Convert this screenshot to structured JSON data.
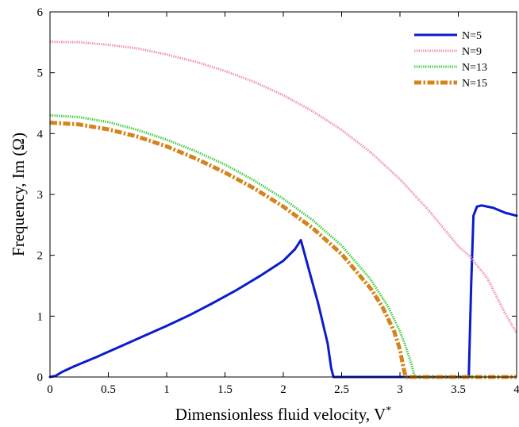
{
  "chart_data": {
    "type": "line",
    "title": "",
    "xlabel": "Dimensionless fluid velocity, V",
    "xlabel_superscript": "*",
    "ylabel": "Frequency, Im (Ω)",
    "xlim": [
      0,
      4
    ],
    "ylim": [
      0,
      6
    ],
    "xticks": [
      0,
      0.5,
      1,
      1.5,
      2,
      2.5,
      3,
      3.5,
      4
    ],
    "xtick_labels": [
      "0",
      "0.5",
      "1",
      "1.5",
      "2",
      "2.5",
      "3",
      "3.5",
      "4"
    ],
    "yticks": [
      0,
      1,
      2,
      3,
      4,
      5,
      6
    ],
    "ytick_labels": [
      "0",
      "1",
      "2",
      "3",
      "4",
      "5",
      "6"
    ],
    "grid": false,
    "legend_position": "top-right",
    "series": [
      {
        "name": "N=5",
        "color": "#0a1ccc",
        "style": "solid",
        "x": [
          0,
          0.05,
          0.1,
          0.2,
          0.4,
          0.6,
          0.8,
          1.0,
          1.2,
          1.4,
          1.6,
          1.8,
          2.0,
          2.1,
          2.15,
          2.2,
          2.3,
          2.38,
          2.41,
          2.43,
          3.0,
          3.59,
          3.61,
          3.63,
          3.66,
          3.7,
          3.8,
          3.9,
          4.0
        ],
        "y": [
          0,
          0.02,
          0.08,
          0.17,
          0.33,
          0.5,
          0.67,
          0.84,
          1.02,
          1.22,
          1.43,
          1.66,
          1.91,
          2.1,
          2.25,
          1.9,
          1.2,
          0.55,
          0.15,
          0,
          0,
          0,
          1.5,
          2.65,
          2.8,
          2.82,
          2.78,
          2.7,
          2.65
        ]
      },
      {
        "name": "N=9",
        "color": "#f08cba",
        "style": "dotted",
        "x": [
          0,
          0.25,
          0.5,
          0.75,
          1.0,
          1.25,
          1.5,
          1.75,
          2.0,
          2.25,
          2.5,
          2.75,
          3.0,
          3.25,
          3.5,
          3.6,
          3.75,
          3.9,
          4.0
        ],
        "y": [
          5.51,
          5.5,
          5.46,
          5.4,
          5.3,
          5.18,
          5.03,
          4.85,
          4.63,
          4.37,
          4.06,
          3.69,
          3.25,
          2.73,
          2.15,
          1.98,
          1.62,
          1.05,
          0.72
        ]
      },
      {
        "name": "N=13",
        "color": "#3ccc3c",
        "style": "dotted",
        "x": [
          0,
          0.25,
          0.5,
          0.75,
          1.0,
          1.25,
          1.5,
          1.75,
          2.0,
          2.25,
          2.5,
          2.75,
          2.9,
          3.0,
          3.05,
          3.1,
          3.12,
          3.13,
          3.5,
          4.0
        ],
        "y": [
          4.3,
          4.27,
          4.19,
          4.06,
          3.9,
          3.71,
          3.49,
          3.23,
          2.93,
          2.58,
          2.16,
          1.6,
          1.15,
          0.75,
          0.5,
          0.2,
          0.05,
          0,
          0,
          0
        ]
      },
      {
        "name": "N=15",
        "color": "#d4841c",
        "style": "dashdot",
        "x": [
          0,
          0.25,
          0.5,
          0.75,
          1.0,
          1.25,
          1.5,
          1.75,
          2.0,
          2.25,
          2.5,
          2.75,
          2.85,
          2.95,
          3.0,
          3.03,
          3.05,
          3.5,
          4.0
        ],
        "y": [
          4.18,
          4.15,
          4.07,
          3.95,
          3.79,
          3.59,
          3.36,
          3.1,
          2.8,
          2.45,
          2.02,
          1.45,
          1.15,
          0.75,
          0.45,
          0.15,
          0,
          0,
          0
        ]
      }
    ]
  }
}
